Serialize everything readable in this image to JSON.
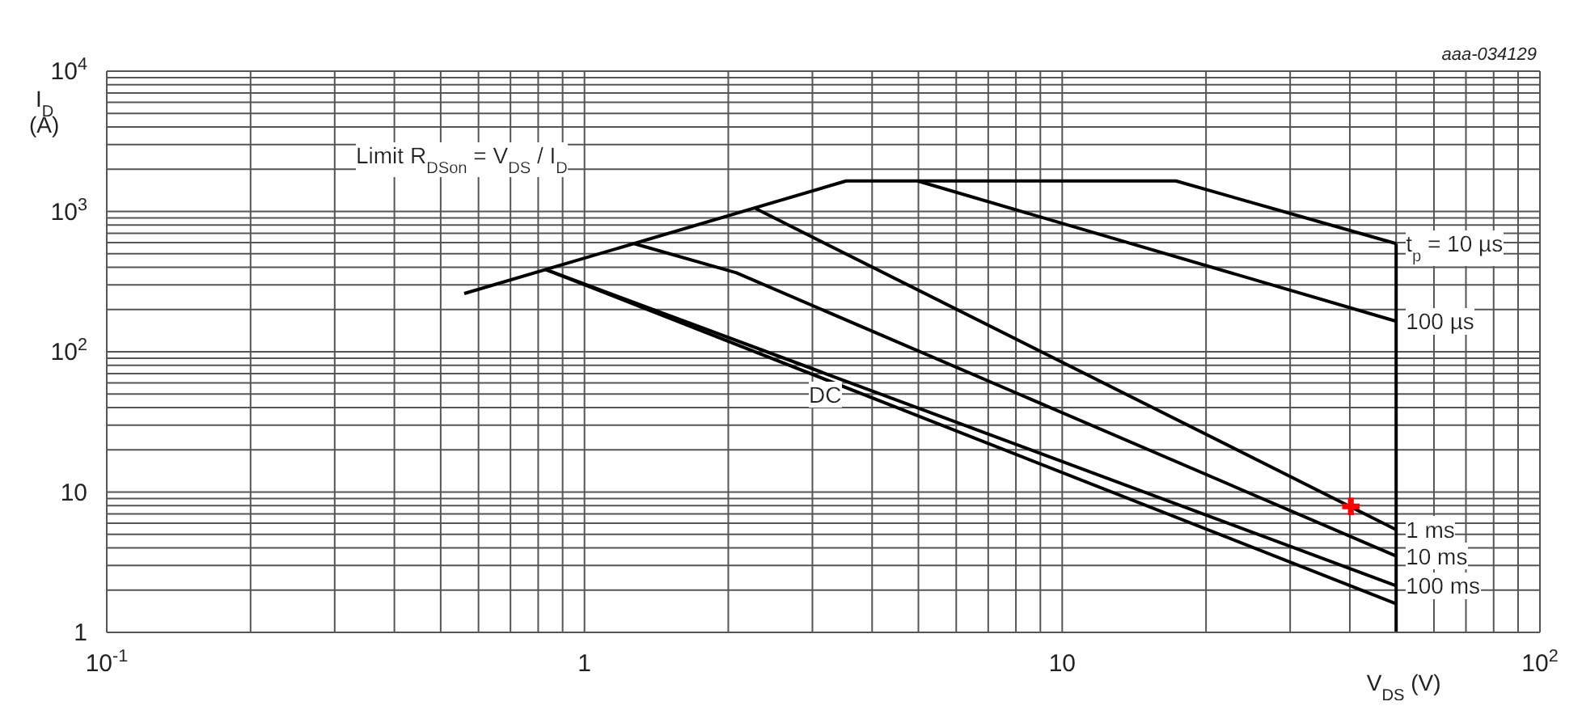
{
  "chart_data": {
    "type": "line",
    "xlabel": "V$_{DS}$ (V)",
    "ylabel": "I$_{D}$ (A)",
    "log": "xy",
    "grid": true,
    "marker": "none",
    "line_style": "solid",
    "xlim": [
      0.1,
      100
    ],
    "ylim": [
      1,
      10000
    ],
    "xticks": [
      {
        "value": 0.1,
        "label": "10$^{-1}$"
      },
      {
        "value": 0.2,
        "label": null
      },
      {
        "value": 0.3,
        "label": null
      },
      {
        "value": 0.4,
        "label": null
      },
      {
        "value": 0.5,
        "label": null
      },
      {
        "value": 0.6,
        "label": null
      },
      {
        "value": 0.7,
        "label": null
      },
      {
        "value": 0.8,
        "label": null
      },
      {
        "value": 0.9,
        "label": null
      },
      1,
      {
        "value": 2,
        "label": null
      },
      {
        "value": 3,
        "label": null
      },
      {
        "value": 4,
        "label": null
      },
      {
        "value": 5,
        "label": null
      },
      {
        "value": 6,
        "label": null
      },
      {
        "value": 7,
        "label": null
      },
      {
        "value": 8,
        "label": null
      },
      {
        "value": 9,
        "label": null
      },
      10,
      {
        "value": 20,
        "label": null
      },
      {
        "value": 30,
        "label": null
      },
      {
        "value": 40,
        "label": null
      },
      {
        "value": 50,
        "label": null
      },
      {
        "value": 60,
        "label": null
      },
      {
        "value": 70,
        "label": null
      },
      {
        "value": 80,
        "label": null
      },
      {
        "value": 90,
        "label": null
      },
      {
        "value": 100,
        "label": "10$^{2}$"
      }
    ],
    "yticks": [
      1,
      {
        "value": 2,
        "label": null
      },
      {
        "value": 3,
        "label": null
      },
      {
        "value": 4,
        "label": null
      },
      {
        "value": 5,
        "label": null
      },
      {
        "value": 6,
        "label": null
      },
      {
        "value": 7,
        "label": null
      },
      {
        "value": 8,
        "label": null
      },
      {
        "value": 9,
        "label": null
      },
      10,
      {
        "value": 20,
        "label": null
      },
      {
        "value": 30,
        "label": null
      },
      {
        "value": 40,
        "label": null
      },
      {
        "value": 50,
        "label": null
      },
      {
        "value": 60,
        "label": null
      },
      {
        "value": 70,
        "label": null
      },
      {
        "value": 80,
        "label": null
      },
      {
        "value": 90,
        "label": null
      },
      {
        "value": 100,
        "label": "10$^{2}$"
      },
      {
        "value": 200,
        "label": null
      },
      {
        "value": 300,
        "label": null
      },
      {
        "value": 400,
        "label": null
      },
      {
        "value": 500,
        "label": null
      },
      {
        "value": 600,
        "label": null
      },
      {
        "value": 700,
        "label": null
      },
      {
        "value": 800,
        "label": null
      },
      {
        "value": 900,
        "label": null
      },
      {
        "value": 1000,
        "label": "10$^{3}$"
      },
      {
        "value": 2000,
        "label": null
      },
      {
        "value": 3000,
        "label": null
      },
      {
        "value": 4000,
        "label": null
      },
      {
        "value": 5000,
        "label": null
      },
      {
        "value": 6000,
        "label": null
      },
      {
        "value": 7000,
        "label": null
      },
      {
        "value": 8000,
        "label": null
      },
      {
        "value": 9000,
        "label": null
      },
      {
        "value": 10000,
        "label": "10$^{4}$"
      }
    ],
    "annotations": [
      "aaa-034129",
      "Limit R$_{DSon}$ = V$_{DS}$ / I$_{D}$",
      "DC"
    ],
    "series": [
      {
        "name": "t$_{p}$ = 10 µs",
        "color": "#000000",
        "x": [
          0.56,
          3.53,
          17.3,
          50
        ],
        "values": [
          260,
          1650,
          1650,
          590
        ]
      },
      {
        "color": "#000000",
        "x": [
          50,
          50
        ],
        "values": [
          590,
          1
        ]
      },
      {
        "name": "100 µs",
        "color": "#000000",
        "x": [
          4.98,
          50
        ],
        "values": [
          1650,
          165
        ]
      },
      {
        "name": "1 ms",
        "color": "#000000",
        "x": [
          2.28,
          50
        ],
        "values": [
          1050,
          5.4
        ]
      },
      {
        "name": "10 ms",
        "color": "#000000",
        "x": [
          1.27,
          2.08,
          50
        ],
        "values": [
          590,
          365,
          3.5
        ]
      },
      {
        "name": "100 ms",
        "color": "#000000",
        "x": [
          0.83,
          50
        ],
        "values": [
          385,
          2.15
        ]
      },
      {
        "color": "#000000",
        "x": [
          0.83,
          50
        ],
        "values": [
          385,
          1.6
        ]
      },
      {
        "type": "scatter",
        "marker": "cross",
        "color": "#ff0000",
        "x": [
          40.2
        ],
        "values": [
          7.9
        ]
      }
    ]
  }
}
